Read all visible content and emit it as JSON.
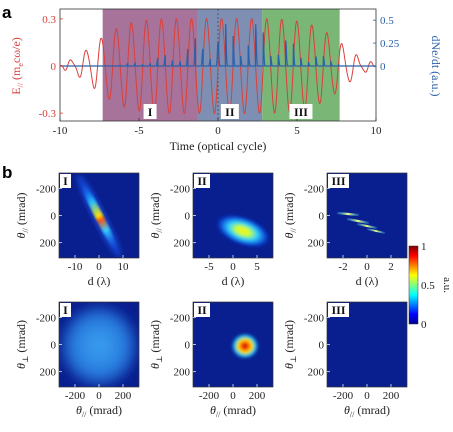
{
  "panel_labels": {
    "a": "a",
    "b": "b"
  },
  "panel_a": {
    "ylabel_left": "E// (meccω/e)",
    "ylabel_left_parts": {
      "E": "E",
      "sub": "//",
      "open": " (m",
      "e": "e",
      "rest": "cω/e)"
    },
    "ylabel_right": "dNe/dt (a.u.)",
    "xlabel": "Time (optical cycle)",
    "x_ticks": [
      "-10",
      "-5",
      "0",
      "5",
      "10"
    ],
    "y_left_ticks": [
      "0.3",
      "0",
      "-0.3"
    ],
    "y_right_ticks": [
      "0.5",
      "0.25",
      "0"
    ],
    "regions": [
      {
        "label": "I",
        "x0": -7.3,
        "x1": -1.3,
        "color": "#8e4c7e"
      },
      {
        "label": "II",
        "x0": -1.3,
        "x1": 2.8,
        "color": "#5a6f9e"
      },
      {
        "label": "III",
        "x0": 2.8,
        "x1": 7.7,
        "color": "#55a250"
      }
    ],
    "left_color": "#d9403a",
    "right_color": "#2b61a8"
  },
  "panel_b": {
    "top_row": [
      {
        "label": "I",
        "xlabel": "d (λ)",
        "ylabel": "θ//",
        "ylabel_unit": "(mrad)",
        "x_ticks": [
          "-10",
          "0",
          "10"
        ],
        "y_ticks": [
          "-200",
          "0",
          "200"
        ]
      },
      {
        "label": "II",
        "xlabel": "d (λ)",
        "ylabel": "θ//",
        "ylabel_unit": "(mrad)",
        "x_ticks": [
          "-5",
          "0",
          "5"
        ],
        "y_ticks": [
          "-200",
          "0",
          "200"
        ]
      },
      {
        "label": "III",
        "xlabel": "d (λ)",
        "ylabel": "θ//",
        "ylabel_unit": "(mrad)",
        "x_ticks": [
          "-2",
          "0",
          "2"
        ],
        "y_ticks": [
          "-200",
          "0",
          "200"
        ]
      }
    ],
    "bottom_row": [
      {
        "label": "I",
        "xlabel": "θ//",
        "xlabel_unit": "(mrad)",
        "ylabel": "θ⊥",
        "ylabel_unit": "(mrad)",
        "x_ticks": [
          "-200",
          "0",
          "200"
        ],
        "y_ticks": [
          "-200",
          "0",
          "200"
        ]
      },
      {
        "label": "II",
        "xlabel": "θ//",
        "xlabel_unit": "(mrad)",
        "ylabel": "θ⊥",
        "ylabel_unit": "(mrad)",
        "x_ticks": [
          "-200",
          "0",
          "200"
        ],
        "y_ticks": [
          "-200",
          "0",
          "200"
        ]
      },
      {
        "label": "III",
        "xlabel": "θ//",
        "xlabel_unit": "(mrad)",
        "ylabel": "θ⊥",
        "ylabel_unit": "(mrad)",
        "x_ticks": [
          "-200",
          "0",
          "200"
        ],
        "y_ticks": [
          "-200",
          "0",
          "200"
        ]
      }
    ],
    "colorbar": {
      "ticks": [
        "1",
        "0.5",
        "0"
      ],
      "unit": "a.u.",
      "colormap": "jet"
    }
  },
  "chart_data": [
    {
      "type": "line",
      "title": "",
      "xlabel": "Time (optical cycle)",
      "ylabel": "E// (meccω/e)",
      "y2label": "dNe/dt (a.u.)",
      "xlim": [
        -10,
        10
      ],
      "ylim": [
        -0.35,
        0.35
      ],
      "y2lim": [
        -0.06,
        0.6
      ],
      "envelope": {
        "center": 0,
        "amplitude_peak": 0.3,
        "period": 1
      },
      "series": [
        {
          "name": "E//",
          "axis": "left",
          "color": "#d9403a",
          "x": [
            -10,
            -9,
            -8,
            -7,
            -6,
            -5,
            -4,
            -3,
            -2,
            -1,
            0,
            1,
            2,
            3,
            4,
            5,
            6,
            7,
            8,
            9,
            10
          ],
          "y": [
            0.0,
            0.0,
            0.05,
            0.12,
            0.2,
            0.26,
            0.29,
            0.3,
            0.3,
            0.3,
            0.3,
            0.3,
            0.3,
            0.3,
            0.29,
            0.26,
            0.2,
            0.12,
            0.05,
            0.0,
            0.0
          ]
        },
        {
          "name": "dNe/dt",
          "axis": "right",
          "color": "#2b61a8",
          "x": [
            -10,
            -8,
            -6,
            -5,
            -4,
            -3,
            -2,
            -1,
            0,
            1,
            2,
            3,
            4,
            5,
            6,
            7,
            8,
            10
          ],
          "y": [
            0,
            0,
            0.05,
            0.12,
            0.2,
            0.25,
            0.3,
            0.35,
            0.38,
            0.45,
            0.5,
            0.52,
            0.48,
            0.42,
            0.32,
            0.2,
            0.05,
            0
          ]
        }
      ],
      "grid": false
    },
    {
      "type": "heatmap",
      "panels": [
        "I",
        "II",
        "III"
      ],
      "description_values": {
        "colorbar_range": [
          0,
          1
        ]
      }
    }
  ]
}
